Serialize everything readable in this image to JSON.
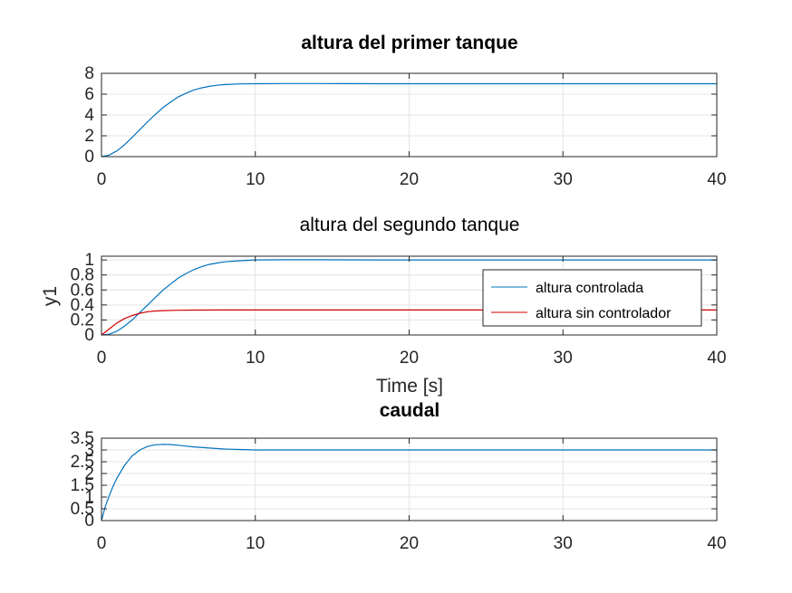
{
  "chart_data": [
    {
      "type": "line",
      "title": "altura del primer tanque",
      "title_bold": true,
      "xlabel": "",
      "ylabel": "",
      "xlim": [
        0,
        40
      ],
      "ylim": [
        0,
        8
      ],
      "xticks": [
        0,
        10,
        20,
        30,
        40
      ],
      "yticks": [
        0,
        2,
        4,
        6,
        8
      ],
      "grid": true,
      "series": [
        {
          "color": "#0072BD",
          "x": [
            0,
            0.5,
            1,
            1.5,
            2,
            2.5,
            3,
            3.5,
            4,
            4.5,
            5,
            5.5,
            6,
            6.5,
            7,
            7.5,
            8,
            9,
            10,
            12,
            14,
            16,
            18,
            20,
            25,
            30,
            35,
            40
          ],
          "y": [
            0,
            0.15,
            0.55,
            1.15,
            1.85,
            2.6,
            3.35,
            4.05,
            4.7,
            5.25,
            5.75,
            6.1,
            6.4,
            6.6,
            6.75,
            6.85,
            6.92,
            6.98,
            7.0,
            7.02,
            7.02,
            7.01,
            7.0,
            7.0,
            7.0,
            7.0,
            7.0,
            7.0
          ]
        }
      ]
    },
    {
      "type": "line",
      "title": "altura del segundo tanque",
      "title_bold": false,
      "xlabel": "Time [s]",
      "ylabel": "y1",
      "xlim": [
        0,
        40
      ],
      "ylim": [
        0,
        1.05
      ],
      "xticks": [
        0,
        10,
        20,
        30,
        40
      ],
      "yticks": [
        0,
        0.2,
        0.4,
        0.6,
        0.8,
        1
      ],
      "ytick_labels": [
        "0",
        "0.2",
        "0.4",
        "0.6",
        "0.8",
        "1"
      ],
      "grid": true,
      "legend_position": "right",
      "series": [
        {
          "name": "altura controlada",
          "color": "#0072BD",
          "x": [
            0,
            0.5,
            1,
            1.5,
            2,
            2.5,
            3,
            3.5,
            4,
            4.5,
            5,
            5.5,
            6,
            6.5,
            7,
            7.5,
            8,
            9,
            10,
            12,
            14,
            16,
            18,
            20,
            25,
            30,
            35,
            40
          ],
          "y": [
            0,
            0.01,
            0.05,
            0.12,
            0.2,
            0.3,
            0.4,
            0.5,
            0.6,
            0.68,
            0.76,
            0.82,
            0.87,
            0.91,
            0.94,
            0.96,
            0.975,
            0.99,
            1.0,
            1.003,
            1.003,
            1.002,
            1.0,
            1.0,
            1.0,
            1.0,
            1.0,
            1.0
          ]
        },
        {
          "name": "altura sin controlador",
          "color": "#D00000",
          "x": [
            0,
            0.5,
            1,
            1.5,
            2,
            2.5,
            3,
            3.5,
            4,
            5,
            6,
            8,
            10,
            15,
            20,
            25,
            30,
            35,
            40
          ],
          "y": [
            0,
            0.08,
            0.16,
            0.22,
            0.26,
            0.29,
            0.31,
            0.32,
            0.325,
            0.33,
            0.332,
            0.333,
            0.333,
            0.333,
            0.333,
            0.333,
            0.333,
            0.333,
            0.333
          ]
        }
      ]
    },
    {
      "type": "line",
      "title": "caudal",
      "title_bold": true,
      "xlabel": "",
      "ylabel": "",
      "xlim": [
        0,
        40
      ],
      "ylim": [
        0,
        3.5
      ],
      "xticks": [
        0,
        10,
        20,
        30,
        40
      ],
      "yticks": [
        0,
        0.5,
        1,
        1.5,
        2,
        2.5,
        3,
        3.5
      ],
      "ytick_labels": [
        "0",
        "0.5",
        "1",
        "1.5",
        "2",
        "2.5",
        "3",
        "3.5"
      ],
      "grid": true,
      "series": [
        {
          "color": "#0072BD",
          "x": [
            0,
            0.25,
            0.5,
            0.75,
            1,
            1.5,
            2,
            2.5,
            3,
            3.5,
            4,
            4.5,
            5,
            5.5,
            6,
            7,
            8,
            9,
            10,
            12,
            15,
            20,
            25,
            30,
            35,
            40
          ],
          "y": [
            0,
            0.6,
            1.05,
            1.45,
            1.8,
            2.35,
            2.75,
            3.0,
            3.15,
            3.22,
            3.24,
            3.23,
            3.2,
            3.16,
            3.13,
            3.08,
            3.04,
            3.02,
            3.0,
            3.0,
            3.0,
            3.0,
            3.0,
            3.0,
            3.0,
            3.0
          ]
        }
      ]
    }
  ]
}
